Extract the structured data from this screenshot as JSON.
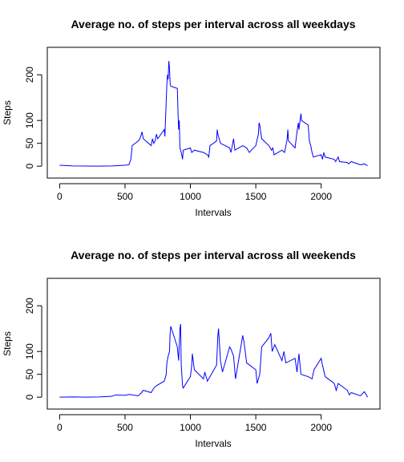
{
  "chart_data": [
    {
      "type": "line",
      "title": "Average no. of steps per interval across all weekdays",
      "xlabel": "Intervals",
      "ylabel": "Steps",
      "color": "#0000ff",
      "x": [
        0,
        100,
        200,
        300,
        400,
        500,
        530,
        545,
        555,
        600,
        610,
        620,
        630,
        640,
        700,
        710,
        720,
        730,
        740,
        750,
        800,
        805,
        820,
        825,
        830,
        835,
        840,
        845,
        850,
        900,
        905,
        910,
        915,
        920,
        930,
        940,
        945,
        1000,
        1010,
        1030,
        1100,
        1130,
        1140,
        1150,
        1200,
        1205,
        1210,
        1230,
        1300,
        1310,
        1330,
        1340,
        1400,
        1430,
        1450,
        1500,
        1520,
        1525,
        1530,
        1545,
        1600,
        1620,
        1630,
        1640,
        1700,
        1720,
        1740,
        1745,
        1750,
        1800,
        1815,
        1825,
        1830,
        1845,
        1850,
        1900,
        1910,
        1920,
        1930,
        1940,
        2000,
        2010,
        2020,
        2030,
        2100,
        2110,
        2130,
        2140,
        2200,
        2210,
        2230,
        2300,
        2330,
        2355
      ],
      "values": [
        2,
        0.5,
        0.3,
        0.2,
        0.5,
        2,
        3,
        15,
        45,
        55,
        58,
        65,
        75,
        60,
        45,
        60,
        50,
        55,
        70,
        60,
        80,
        65,
        180,
        200,
        190,
        230,
        215,
        180,
        175,
        170,
        120,
        80,
        100,
        40,
        30,
        15,
        35,
        40,
        30,
        35,
        30,
        25,
        20,
        45,
        55,
        80,
        70,
        50,
        40,
        30,
        60,
        35,
        45,
        40,
        30,
        45,
        70,
        95,
        90,
        60,
        45,
        35,
        40,
        25,
        35,
        30,
        60,
        80,
        55,
        40,
        75,
        95,
        80,
        115,
        100,
        90,
        55,
        45,
        30,
        20,
        25,
        15,
        30,
        20,
        15,
        10,
        20,
        10,
        8,
        5,
        10,
        3,
        5,
        1
      ],
      "xlim": [
        -94.2,
        2449.2
      ],
      "xticks": [
        0,
        500,
        1000,
        1500,
        2000
      ],
      "ylim": [
        -26,
        260
      ],
      "yticks": [
        0,
        50,
        100,
        200
      ]
    },
    {
      "type": "line",
      "title": "Average no. of steps per interval across all weekends",
      "xlabel": "Intervals",
      "ylabel": "Steps",
      "color": "#0000ff",
      "x": [
        0,
        100,
        200,
        300,
        400,
        430,
        500,
        530,
        600,
        620,
        640,
        700,
        720,
        740,
        800,
        815,
        820,
        830,
        840,
        845,
        850,
        900,
        910,
        920,
        925,
        930,
        940,
        945,
        1000,
        1010,
        1015,
        1030,
        1100,
        1110,
        1130,
        1200,
        1210,
        1215,
        1230,
        1245,
        1300,
        1310,
        1330,
        1345,
        1400,
        1410,
        1430,
        1500,
        1510,
        1530,
        1545,
        1600,
        1615,
        1625,
        1645,
        1700,
        1715,
        1730,
        1800,
        1815,
        1830,
        1845,
        1900,
        1930,
        1945,
        2000,
        2010,
        2030,
        2100,
        2115,
        2130,
        2200,
        2215,
        2230,
        2300,
        2330,
        2345,
        2355
      ],
      "values": [
        0.2,
        0.5,
        0,
        0.5,
        2,
        5,
        4,
        6,
        3,
        8,
        15,
        10,
        20,
        25,
        35,
        50,
        75,
        90,
        100,
        140,
        155,
        110,
        80,
        150,
        160,
        70,
        25,
        20,
        45,
        70,
        95,
        60,
        40,
        55,
        35,
        70,
        135,
        150,
        80,
        55,
        110,
        105,
        90,
        40,
        135,
        120,
        75,
        60,
        30,
        50,
        110,
        130,
        140,
        100,
        115,
        80,
        100,
        75,
        85,
        55,
        95,
        50,
        45,
        40,
        60,
        85,
        70,
        45,
        30,
        15,
        30,
        15,
        5,
        10,
        3,
        12,
        5,
        0
      ],
      "xlim": [
        -94.2,
        2449.2
      ],
      "xticks": [
        0,
        500,
        1000,
        1500,
        2000
      ],
      "ylim": [
        -26,
        260
      ],
      "yticks": [
        0,
        50,
        100,
        200
      ]
    }
  ]
}
